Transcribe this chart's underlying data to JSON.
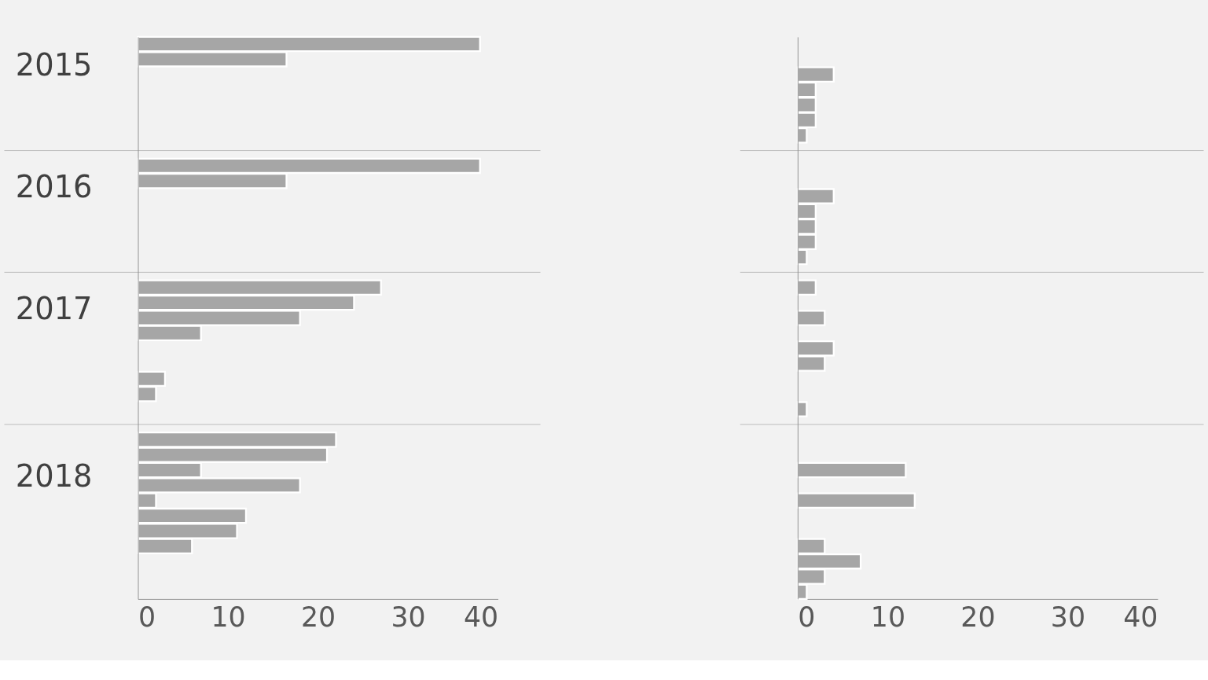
{
  "chart_data": [
    {
      "type": "bar",
      "orientation": "horizontal",
      "color": "#a6a6a6",
      "categories": [
        null,
        "2015",
        null,
        null,
        null,
        null,
        null,
        null,
        null,
        "2016",
        null,
        null,
        null,
        null,
        null,
        null,
        null,
        "2017",
        null,
        null,
        null,
        null,
        null,
        null,
        null,
        null,
        null,
        null,
        "2018",
        null,
        null,
        null,
        null,
        null,
        null,
        null,
        null
      ],
      "values": [
        38,
        16.5,
        null,
        null,
        null,
        null,
        null,
        null,
        38,
        16.5,
        null,
        null,
        null,
        null,
        null,
        null,
        27,
        24,
        18,
        7,
        null,
        null,
        3,
        2,
        null,
        null,
        22,
        21,
        7,
        18,
        2,
        12,
        11,
        6,
        null,
        null,
        null
      ],
      "xlim": [
        0,
        40
      ],
      "xticks": [
        0,
        10,
        20,
        30,
        40
      ]
    },
    {
      "type": "bar",
      "orientation": "horizontal",
      "color": "#a6a6a6",
      "categories": [
        null,
        null,
        null,
        null,
        null,
        null,
        null,
        null,
        null,
        null,
        null,
        null,
        null,
        null,
        null,
        null,
        null,
        null,
        null,
        null,
        null,
        null,
        null,
        null,
        null,
        null,
        null,
        null,
        null,
        null,
        null,
        null,
        null,
        null,
        null,
        null,
        null
      ],
      "values": [
        null,
        null,
        4,
        2,
        2,
        2,
        1,
        null,
        null,
        null,
        4,
        2,
        2,
        2,
        1,
        null,
        2,
        null,
        3,
        null,
        4,
        3,
        null,
        null,
        1,
        null,
        null,
        null,
        12,
        null,
        13,
        null,
        null,
        3,
        7,
        3,
        1
      ],
      "xlim": [
        0,
        40
      ],
      "xticks": [
        0,
        10,
        20,
        30,
        40
      ]
    }
  ]
}
